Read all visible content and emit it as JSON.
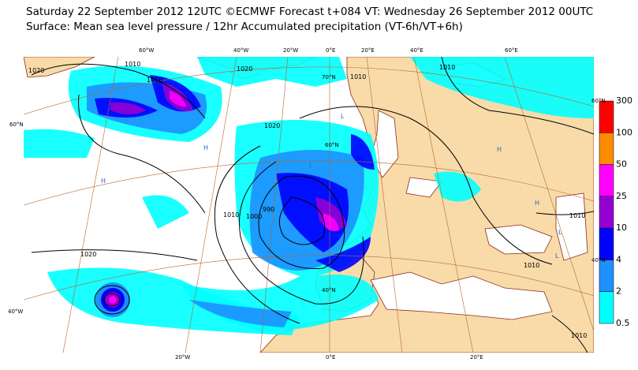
{
  "header": {
    "title": "Saturday 22 September 2012 12UTC ©ECMWF Forecast t+084 VT: Wednesday 26 September 2012 00UTC",
    "subtitle": "Surface: Mean sea level pressure / 12hr Accumulated precipitation (VT-6h/VT+6h)"
  },
  "map": {
    "grid_labels": [
      "60°W",
      "40°W",
      "20°W",
      "0°E",
      "20°E",
      "40°E",
      "60°E",
      "20°W",
      "0°E",
      "20°E",
      "60°N",
      "40°W",
      "60°N",
      "40°N",
      "70°N",
      "60°N",
      "40°N"
    ],
    "isobar_labels": [
      "1010",
      "1020",
      "1010",
      "1020",
      "1010",
      "1010",
      "1020",
      "1010",
      "1000",
      "990",
      "1020",
      "1010",
      "1010",
      "1010"
    ],
    "pressure_centers": [
      "H",
      "H",
      "H",
      "H",
      "L",
      "L",
      "L",
      "L"
    ]
  },
  "legend": {
    "levels": [
      0.5,
      2,
      4,
      10,
      25,
      50,
      100,
      300
    ],
    "colors": [
      "#00ffff",
      "#1e90ff",
      "#0000ff",
      "#9400d3",
      "#ff00ff",
      "#ff8c00",
      "#ff0000"
    ]
  }
}
